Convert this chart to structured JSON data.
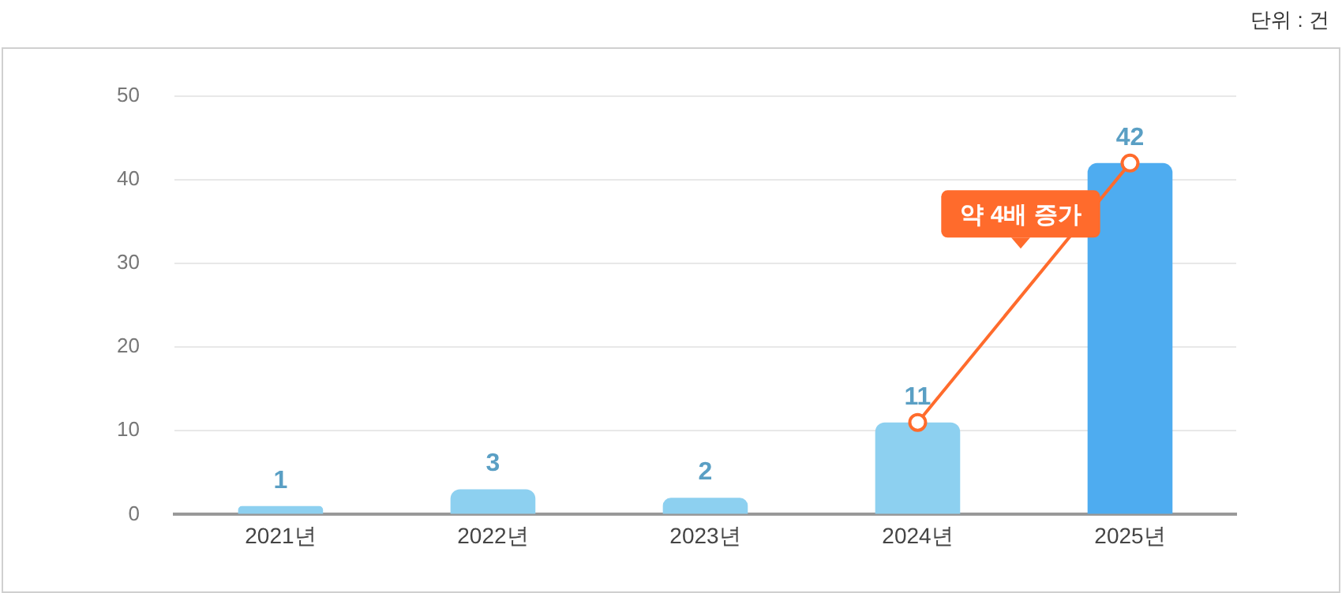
{
  "chart_data": {
    "type": "bar",
    "categories": [
      "2021년",
      "2022년",
      "2023년",
      "2024년",
      "2025년"
    ],
    "series": [
      {
        "colors": [
          "#8dd0f0",
          "#8dd0f0",
          "#8dd0f0",
          "#8dd0f0",
          "#4eacf0"
        ],
        "values": [
          1,
          3,
          2,
          11,
          42
        ],
        "value_labels": [
          "1",
          "3",
          "2",
          "11",
          "42"
        ]
      },
      {
        "type": "line",
        "color": "#ff6b2c",
        "values": [
          null,
          null,
          null,
          11,
          42
        ],
        "marker": "circle"
      }
    ],
    "ylim": [
      0,
      50
    ],
    "yticks": [
      0,
      10,
      20,
      30,
      40,
      50
    ],
    "grid": "y",
    "legend": false,
    "annotations": [
      "단위 : 건",
      "약 4배 증가"
    ]
  }
}
